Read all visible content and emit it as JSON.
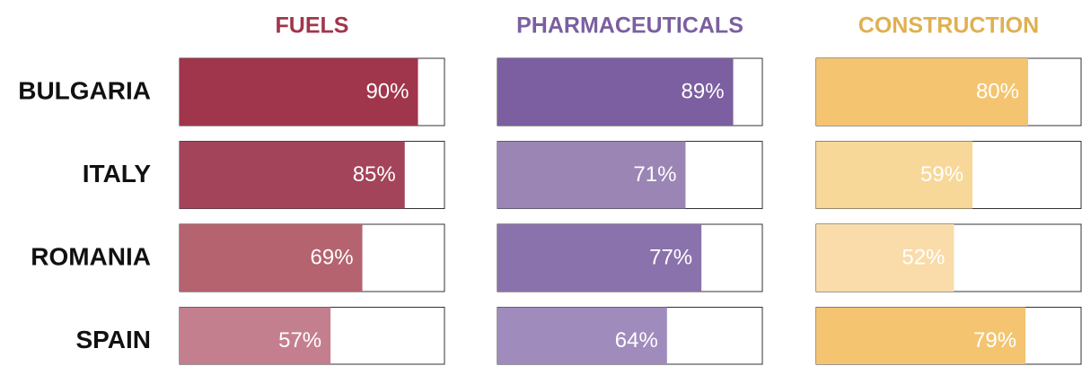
{
  "chart_data": {
    "type": "bar",
    "categories": [
      "BULGARIA",
      "ITALY",
      "ROMANIA",
      "SPAIN"
    ],
    "xlim": [
      0,
      100
    ],
    "series": [
      {
        "name": "FUELS",
        "color": "#a0364b",
        "colors": [
          "#a0364b",
          "#a3445a",
          "#b4636f",
          "#c47f8f"
        ],
        "values": [
          90,
          85,
          69,
          57
        ],
        "value_labels": [
          "90%",
          "85%",
          "69%",
          "57%"
        ]
      },
      {
        "name": "PHARMACEUTICALS",
        "color": "#7b5fa0",
        "colors": [
          "#7b5fa0",
          "#9a85b5",
          "#8a72ac",
          "#a08bbd"
        ],
        "values": [
          89,
          71,
          77,
          64
        ],
        "value_labels": [
          "89%",
          "71%",
          "77%",
          "64%"
        ]
      },
      {
        "name": "CONSTRUCTION",
        "color": "#e0b050",
        "colors": [
          "#f4c470",
          "#f8d898",
          "#f9dcaa",
          "#f4c470"
        ],
        "values": [
          80,
          59,
          52,
          79
        ],
        "value_labels": [
          "80%",
          "59%",
          "52%",
          "79%"
        ]
      }
    ]
  }
}
